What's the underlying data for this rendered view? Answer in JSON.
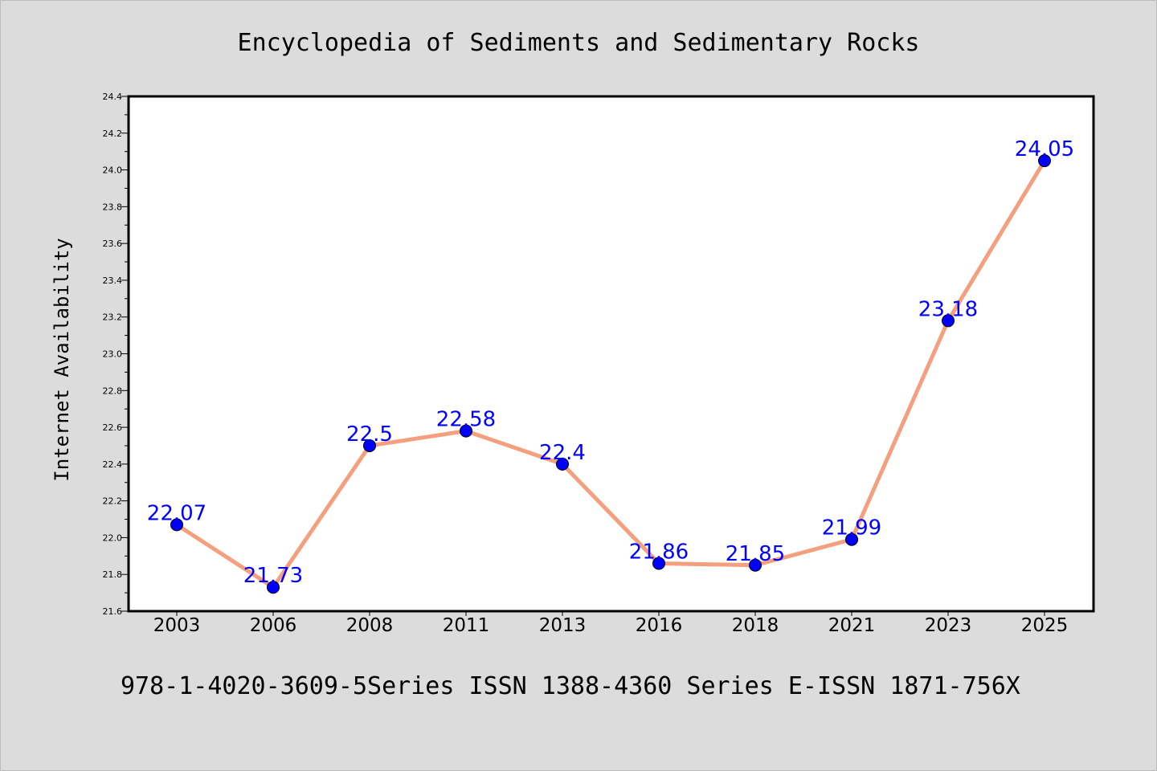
{
  "chart_data": {
    "type": "line",
    "title": "Encyclopedia of Sediments and Sedimentary Rocks",
    "ylabel": "Internet Availability",
    "xlabel": "",
    "categories": [
      "2003",
      "2006",
      "2008",
      "2011",
      "2013",
      "2016",
      "2018",
      "2021",
      "2023",
      "2025"
    ],
    "series": [
      {
        "values": [
          22.07,
          21.73,
          22.5,
          22.58,
          22.4,
          21.86,
          21.85,
          21.99,
          23.18,
          24.05
        ]
      }
    ],
    "data_labels": [
      "22.07",
      "21.73",
      "22.5",
      "22.58",
      "22.4",
      "21.86",
      "21.85",
      "21.99",
      "23.18",
      "24.05"
    ],
    "ylim": [
      21.6,
      24.4
    ],
    "yticks": [
      "21.6",
      "21.8",
      "22.0",
      "22.2",
      "22.4",
      "22.6",
      "22.8",
      "23.0",
      "23.2",
      "23.4",
      "23.6",
      "23.8",
      "24.0",
      "24.2",
      "24.4"
    ],
    "grid": false,
    "footer": "978-1-4020-3609-5Series ISSN 1388-4360 Series E-ISSN 1871-756X",
    "colors": {
      "background": "#dcdcdc",
      "plot_bg": "#ffffff",
      "line": "#f4a07e",
      "marker": "#0000ff",
      "label": "#0000ff",
      "text": "#000000"
    }
  }
}
